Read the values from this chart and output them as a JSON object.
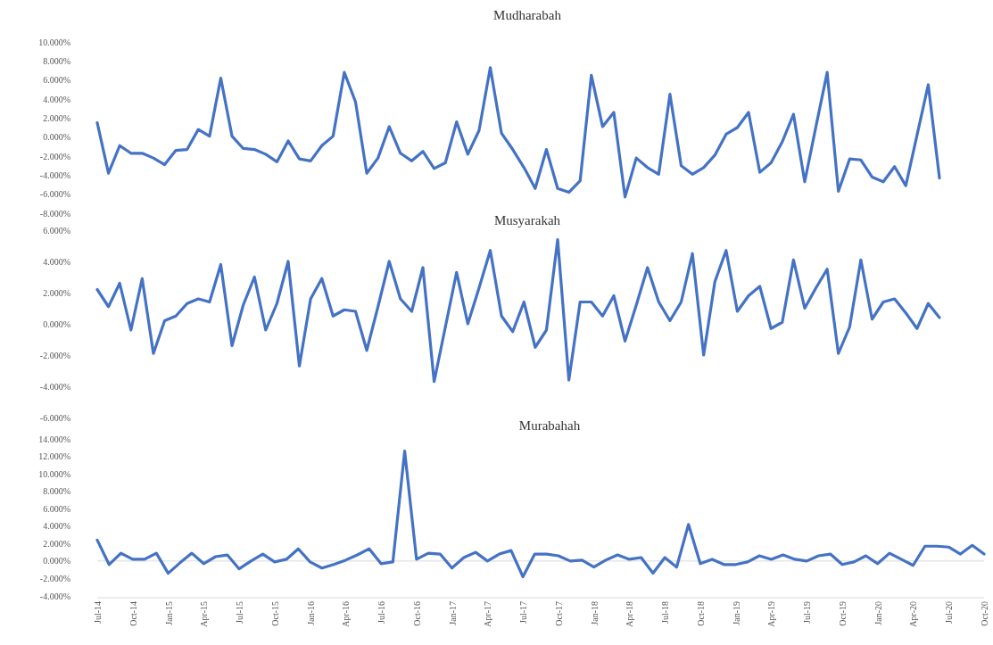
{
  "chart_data": [
    {
      "type": "line",
      "title": "Mudharabah",
      "color": "#4472c4",
      "tick_labels": "y",
      "categories": [
        null,
        null,
        null,
        null,
        null,
        null,
        null,
        null,
        null,
        null,
        null,
        null,
        null,
        null,
        null,
        null,
        null,
        null,
        null,
        null,
        null,
        null,
        null,
        null,
        null,
        null,
        null,
        null,
        null,
        null,
        null,
        null,
        null,
        null,
        null,
        null,
        null,
        null,
        null,
        null,
        null,
        null,
        null,
        null,
        null,
        null,
        null,
        null,
        null,
        null,
        null,
        null,
        null,
        null,
        null,
        null,
        null,
        null,
        null,
        null,
        null,
        null,
        null,
        null,
        null,
        null,
        null,
        null,
        null,
        null,
        null,
        null,
        null,
        null,
        null,
        null
      ],
      "values": [
        1.5,
        -3.8,
        -0.9,
        -1.7,
        -1.7,
        -2.2,
        -2.9,
        -1.4,
        -1.3,
        0.8,
        0.1,
        6.2,
        0.1,
        -1.2,
        -1.3,
        -1.8,
        -2.6,
        -0.4,
        -2.3,
        -2.5,
        -0.9,
        0.1,
        6.8,
        3.7,
        -3.8,
        -2.2,
        1.1,
        -1.7,
        -2.5,
        -1.5,
        -3.3,
        -2.7,
        1.6,
        -1.8,
        0.7,
        7.3,
        0.4,
        -1.3,
        -3.2,
        -5.4,
        -1.3,
        -5.4,
        -5.8,
        -4.6,
        6.5,
        1.1,
        2.6,
        -6.3,
        -2.2,
        -3.2,
        -3.9,
        4.5,
        -3.0,
        -3.9,
        -3.2,
        -1.9,
        0.3,
        1.0,
        2.6,
        -3.7,
        -2.7,
        -0.5,
        2.4,
        -4.7,
        1.1,
        6.8,
        -5.7,
        -2.3,
        -2.4,
        -4.2,
        -4.7,
        -3.1,
        -5.1,
        0.2,
        5.5,
        -4.3
      ],
      "ylim": [
        -8,
        10
      ],
      "yticks": [
        {
          "value": 10,
          "label": "10.000%"
        },
        {
          "value": 8,
          "label": "8.000%"
        },
        {
          "value": 6,
          "label": "6.000%"
        },
        {
          "value": 4,
          "label": "4.000%"
        },
        {
          "value": 2,
          "label": "2.000%"
        },
        {
          "value": 0,
          "label": "0.000%"
        },
        {
          "value": -2,
          "label": "-2.000%"
        },
        {
          "value": -4,
          "label": "-4.000%"
        },
        {
          "value": -6,
          "label": "-6.000%"
        },
        {
          "value": -8,
          "label": "-8.000%"
        }
      ]
    },
    {
      "type": "line",
      "title": "Musyarakah",
      "color": "#4472c4",
      "tick_labels": "y",
      "categories": [
        null,
        null,
        null,
        null,
        null,
        null,
        null,
        null,
        null,
        null,
        null,
        null,
        null,
        null,
        null,
        null,
        null,
        null,
        null,
        null,
        null,
        null,
        null,
        null,
        null,
        null,
        null,
        null,
        null,
        null,
        null,
        null,
        null,
        null,
        null,
        null,
        null,
        null,
        null,
        null,
        null,
        null,
        null,
        null,
        null,
        null,
        null,
        null,
        null,
        null,
        null,
        null,
        null,
        null,
        null,
        null,
        null,
        null,
        null,
        null,
        null,
        null,
        null,
        null,
        null,
        null,
        null,
        null,
        null,
        null,
        null,
        null,
        null,
        null,
        null,
        null
      ],
      "values": [
        2.2,
        1.1,
        2.6,
        -0.4,
        2.9,
        -1.9,
        0.2,
        0.5,
        1.3,
        1.6,
        1.4,
        3.8,
        -1.4,
        1.2,
        3.0,
        -0.4,
        1.3,
        4.0,
        -2.7,
        1.6,
        2.9,
        0.5,
        0.9,
        0.8,
        -1.7,
        1.1,
        4.0,
        1.6,
        0.8,
        3.6,
        -3.7,
        -0.2,
        3.3,
        0.0,
        2.3,
        4.7,
        0.5,
        -0.5,
        1.4,
        -1.5,
        -0.4,
        5.4,
        -3.6,
        1.4,
        1.4,
        0.5,
        1.8,
        -1.1,
        1.2,
        3.6,
        1.4,
        0.2,
        1.4,
        4.5,
        -2.0,
        2.7,
        4.7,
        0.8,
        1.8,
        2.4,
        -0.3,
        0.1,
        4.1,
        1.0,
        2.3,
        3.5,
        -1.9,
        -0.2,
        4.1,
        0.3,
        1.4,
        1.6,
        0.7,
        -0.3,
        1.3,
        0.4
      ],
      "ylim": [
        -6,
        6
      ],
      "yticks": [
        {
          "value": 6,
          "label": "6.000%"
        },
        {
          "value": 4,
          "label": "4.000%"
        },
        {
          "value": 2,
          "label": "2.000%"
        },
        {
          "value": 0,
          "label": "0.000%"
        },
        {
          "value": -2,
          "label": "-2.000%"
        },
        {
          "value": -4,
          "label": "-4.000%"
        },
        {
          "value": -6,
          "label": "-6.000%"
        }
      ]
    },
    {
      "type": "line",
      "title": "Murabahah",
      "color": "#4472c4",
      "categories": [
        "Jul-14",
        null,
        null,
        "Oct-14",
        null,
        null,
        "Jan-15",
        null,
        null,
        "Apr-15",
        null,
        null,
        "Jul-15",
        null,
        null,
        "Oct-15",
        null,
        null,
        "Jan-16",
        null,
        null,
        "Apr-16",
        null,
        null,
        "Jul-16",
        null,
        null,
        "Oct-16",
        null,
        null,
        "Jan-17",
        null,
        null,
        "Apr-17",
        null,
        null,
        "Jul-17",
        null,
        null,
        "Oct-17",
        null,
        null,
        "Jan-18",
        null,
        null,
        "Apr-18",
        null,
        null,
        "Jul-18",
        null,
        null,
        "Oct-18",
        null,
        null,
        "Jan-19",
        null,
        null,
        "Apr-19",
        null,
        null,
        "Jul-19",
        null,
        null,
        "Oct-19",
        null,
        null,
        "Jan-20",
        null,
        null,
        "Apr-20",
        null,
        null,
        "Jul-20",
        null,
        null,
        "Oct-20"
      ],
      "values": [
        2.4,
        -0.4,
        0.9,
        0.2,
        0.2,
        0.9,
        -1.4,
        -0.2,
        0.9,
        -0.3,
        0.5,
        0.7,
        -0.9,
        0.0,
        0.8,
        -0.1,
        0.2,
        1.4,
        -0.1,
        -0.8,
        -0.4,
        0.1,
        0.7,
        1.4,
        -0.3,
        -0.1,
        12.6,
        0.2,
        0.9,
        0.8,
        -0.8,
        0.4,
        1.0,
        0.0,
        0.8,
        1.2,
        -1.8,
        0.8,
        0.8,
        0.6,
        0.0,
        0.1,
        -0.7,
        0.1,
        0.7,
        0.2,
        0.4,
        -1.4,
        0.4,
        -0.7,
        4.2,
        -0.3,
        0.2,
        -0.4,
        -0.4,
        -0.1,
        0.6,
        0.2,
        0.7,
        0.2,
        0.0,
        0.6,
        0.8,
        -0.4,
        -0.1,
        0.6,
        -0.3,
        0.9,
        0.2,
        -0.5,
        1.7,
        1.7,
        1.6,
        0.8,
        1.8,
        0.8
      ],
      "ylim": [
        -4,
        14
      ],
      "yticks": [
        {
          "value": 14,
          "label": "14.000%"
        },
        {
          "value": 12,
          "label": "12.000%"
        },
        {
          "value": 10,
          "label": "10.000%"
        },
        {
          "value": 8,
          "label": "8.000%"
        },
        {
          "value": 6,
          "label": "6.000%"
        },
        {
          "value": 4,
          "label": "4.000%"
        },
        {
          "value": 2,
          "label": "2.000%"
        },
        {
          "value": 0,
          "label": "0.000%"
        },
        {
          "value": -2,
          "label": "-2.000%"
        },
        {
          "value": -4,
          "label": "-4.000%"
        }
      ]
    }
  ]
}
